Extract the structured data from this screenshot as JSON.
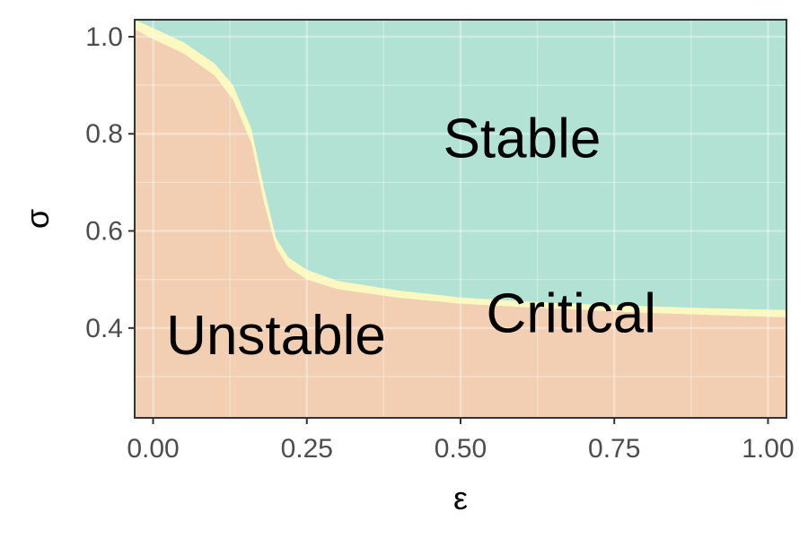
{
  "chart_data": {
    "type": "area",
    "title": "",
    "xlabel": "ε",
    "ylabel": "σ",
    "xlim": [
      -0.03,
      1.03
    ],
    "ylim": [
      0.215,
      1.035
    ],
    "x_ticks": [
      0.0,
      0.25,
      0.5,
      0.75,
      1.0
    ],
    "x_tick_labels": [
      "0.00",
      "0.25",
      "0.50",
      "0.75",
      "1.00"
    ],
    "y_ticks": [
      0.4,
      0.6,
      0.8,
      1.0
    ],
    "y_tick_labels": [
      "0.4",
      "0.6",
      "0.8",
      "1.0"
    ],
    "grid": true,
    "colors": {
      "stable": "#b2e2d4",
      "unstable": "#f2cfb3",
      "critical": "#fdf8bf",
      "grid": "#c8d8d0",
      "axis": "#333333"
    },
    "regions": [
      {
        "name": "Stable",
        "label": "Stable",
        "label_at": [
          0.6,
          0.79
        ]
      },
      {
        "name": "Critical",
        "label": "Critical",
        "label_at": [
          0.68,
          0.43
        ]
      },
      {
        "name": "Unstable",
        "label": "Unstable",
        "label_at": [
          0.2,
          0.385
        ]
      }
    ],
    "critical_boundary": {
      "x": [
        -0.03,
        0.0,
        0.05,
        0.1,
        0.13,
        0.16,
        0.18,
        0.2,
        0.22,
        0.25,
        0.3,
        0.4,
        0.5,
        0.6,
        0.7,
        0.8,
        0.9,
        1.0,
        1.03
      ],
      "lower": [
        1.015,
        0.995,
        0.965,
        0.92,
        0.87,
        0.78,
        0.66,
        0.565,
        0.525,
        0.5,
        0.48,
        0.462,
        0.45,
        0.443,
        0.437,
        0.431,
        0.427,
        0.423,
        0.422
      ],
      "upper": [
        1.035,
        1.018,
        0.988,
        0.945,
        0.9,
        0.81,
        0.69,
        0.585,
        0.545,
        0.52,
        0.497,
        0.477,
        0.463,
        0.455,
        0.449,
        0.445,
        0.441,
        0.438,
        0.437
      ]
    }
  }
}
